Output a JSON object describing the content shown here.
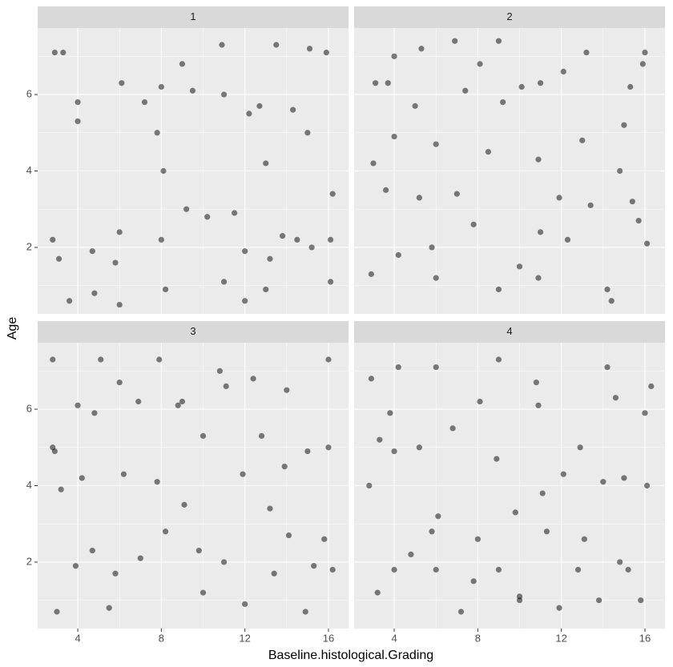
{
  "chart_data": {
    "type": "facet-scatter",
    "xlabel": "Baseline.histological.Grading",
    "ylabel": "Age",
    "xlim": [
      2.08,
      16.96
    ],
    "ylim": [
      0.26,
      7.74
    ],
    "xticks": [
      4,
      8,
      12,
      16
    ],
    "yticks": [
      2,
      4,
      6
    ],
    "grid": true,
    "minor_grid": true,
    "color": "#000000",
    "panels": [
      {
        "title": "1",
        "x": [
          2.9,
          3.3,
          3.6,
          2.8,
          3.1,
          4,
          4,
          4.7,
          4.8,
          5.8,
          6,
          6.1,
          7.2,
          7.8,
          8,
          8,
          8.1,
          8.2,
          9,
          9.2,
          10.2,
          10.9,
          11,
          11,
          11.5,
          12.2,
          12,
          12.7,
          13,
          13.5,
          13.2,
          13.8,
          14.3,
          14.5,
          15,
          15.2,
          15.1,
          15.9,
          16.1,
          16.1,
          16.2,
          13,
          12,
          6,
          9.5
        ],
        "y": [
          7.1,
          7.1,
          0.6,
          2.2,
          1.7,
          5.8,
          5.3,
          1.9,
          0.8,
          1.6,
          2.4,
          6.3,
          5.8,
          5,
          2.2,
          6.2,
          4,
          0.9,
          6.8,
          3,
          2.8,
          7.3,
          6,
          1.1,
          2.9,
          5.5,
          1.9,
          5.7,
          4.2,
          7.3,
          1.7,
          2.3,
          5.6,
          2.2,
          5,
          2,
          7.2,
          7.1,
          2.2,
          1.1,
          3.4,
          0.9,
          0.6,
          0.5,
          6.1
        ]
      },
      {
        "title": "2",
        "x": [
          2.9,
          3,
          3.1,
          3.6,
          4,
          4,
          4.2,
          5,
          5.2,
          5.3,
          6,
          5.8,
          6,
          6.9,
          7,
          7.8,
          8.1,
          8.5,
          9,
          9,
          9.2,
          10,
          10.1,
          10.9,
          10.9,
          11,
          11.9,
          12.1,
          12.3,
          13,
          13.4,
          13.2,
          14.2,
          14.4,
          14.8,
          15,
          15.4,
          15.3,
          15.7,
          16,
          16.1,
          15.9,
          3.7,
          11,
          7.4
        ],
        "y": [
          1.3,
          4.2,
          6.3,
          3.5,
          7,
          4.9,
          1.8,
          5.7,
          3.3,
          7.2,
          4.7,
          2,
          1.2,
          7.4,
          3.4,
          2.6,
          6.8,
          4.5,
          7.4,
          0.9,
          5.8,
          1.5,
          6.2,
          4.3,
          1.2,
          6.3,
          3.3,
          6.6,
          2.2,
          4.8,
          3.1,
          7.1,
          0.9,
          0.6,
          4,
          5.2,
          3.2,
          6.2,
          2.7,
          7.1,
          2.1,
          6.8,
          6.3,
          2.4,
          6.1
        ]
      },
      {
        "title": "3",
        "x": [
          2.8,
          2.9,
          3.2,
          3,
          3.9,
          4,
          4.2,
          4.7,
          4.8,
          5.1,
          5.5,
          5.8,
          6,
          6.2,
          6.9,
          7,
          7.8,
          7.9,
          8.2,
          9,
          9.1,
          10,
          10,
          10.8,
          11,
          11.9,
          12,
          12.4,
          13.2,
          13.4,
          14,
          14.1,
          14.9,
          15,
          15.3,
          16,
          16,
          16.2,
          15.8,
          12.8,
          8.8,
          2.8,
          9.8,
          11.1,
          13.9
        ],
        "y": [
          7.3,
          4.9,
          3.9,
          0.7,
          1.9,
          6.1,
          4.2,
          2.3,
          5.9,
          7.3,
          0.8,
          1.7,
          6.7,
          4.3,
          6.2,
          2.1,
          4.1,
          7.3,
          2.8,
          6.2,
          3.5,
          1.2,
          5.3,
          7,
          2,
          4.3,
          0.9,
          6.8,
          3.4,
          1.7,
          6.5,
          2.7,
          0.7,
          4.9,
          1.9,
          7.3,
          5,
          1.8,
          2.6,
          5.3,
          6.1,
          5,
          2.3,
          6.6,
          4.5
        ]
      },
      {
        "title": "4",
        "x": [
          2.8,
          2.9,
          3.2,
          3.3,
          4,
          4,
          4.2,
          4.8,
          5.2,
          5.8,
          6,
          6,
          6.1,
          6.8,
          7.2,
          7.8,
          8,
          8.1,
          8.9,
          9,
          9,
          9.8,
          10,
          10.8,
          10.9,
          11.1,
          11.9,
          12.1,
          12.8,
          12.9,
          13.1,
          13.8,
          14,
          14.2,
          14.8,
          15,
          15.2,
          16,
          15.8,
          16.1,
          16.3,
          11.3,
          3.8,
          10,
          14.6
        ],
        "y": [
          4,
          6.8,
          1.2,
          5.2,
          1.8,
          4.9,
          7.1,
          2.2,
          5,
          2.8,
          7.1,
          1.8,
          3.2,
          5.5,
          0.7,
          1.5,
          2.6,
          6.2,
          4.7,
          1.8,
          7.3,
          3.3,
          1.1,
          6.7,
          6.1,
          3.8,
          0.8,
          4.3,
          1.8,
          5,
          2.6,
          1,
          4.1,
          7.1,
          2,
          4.2,
          1.8,
          5.9,
          1,
          4,
          6.6,
          2.8,
          5.9,
          1,
          6.3
        ]
      }
    ]
  }
}
